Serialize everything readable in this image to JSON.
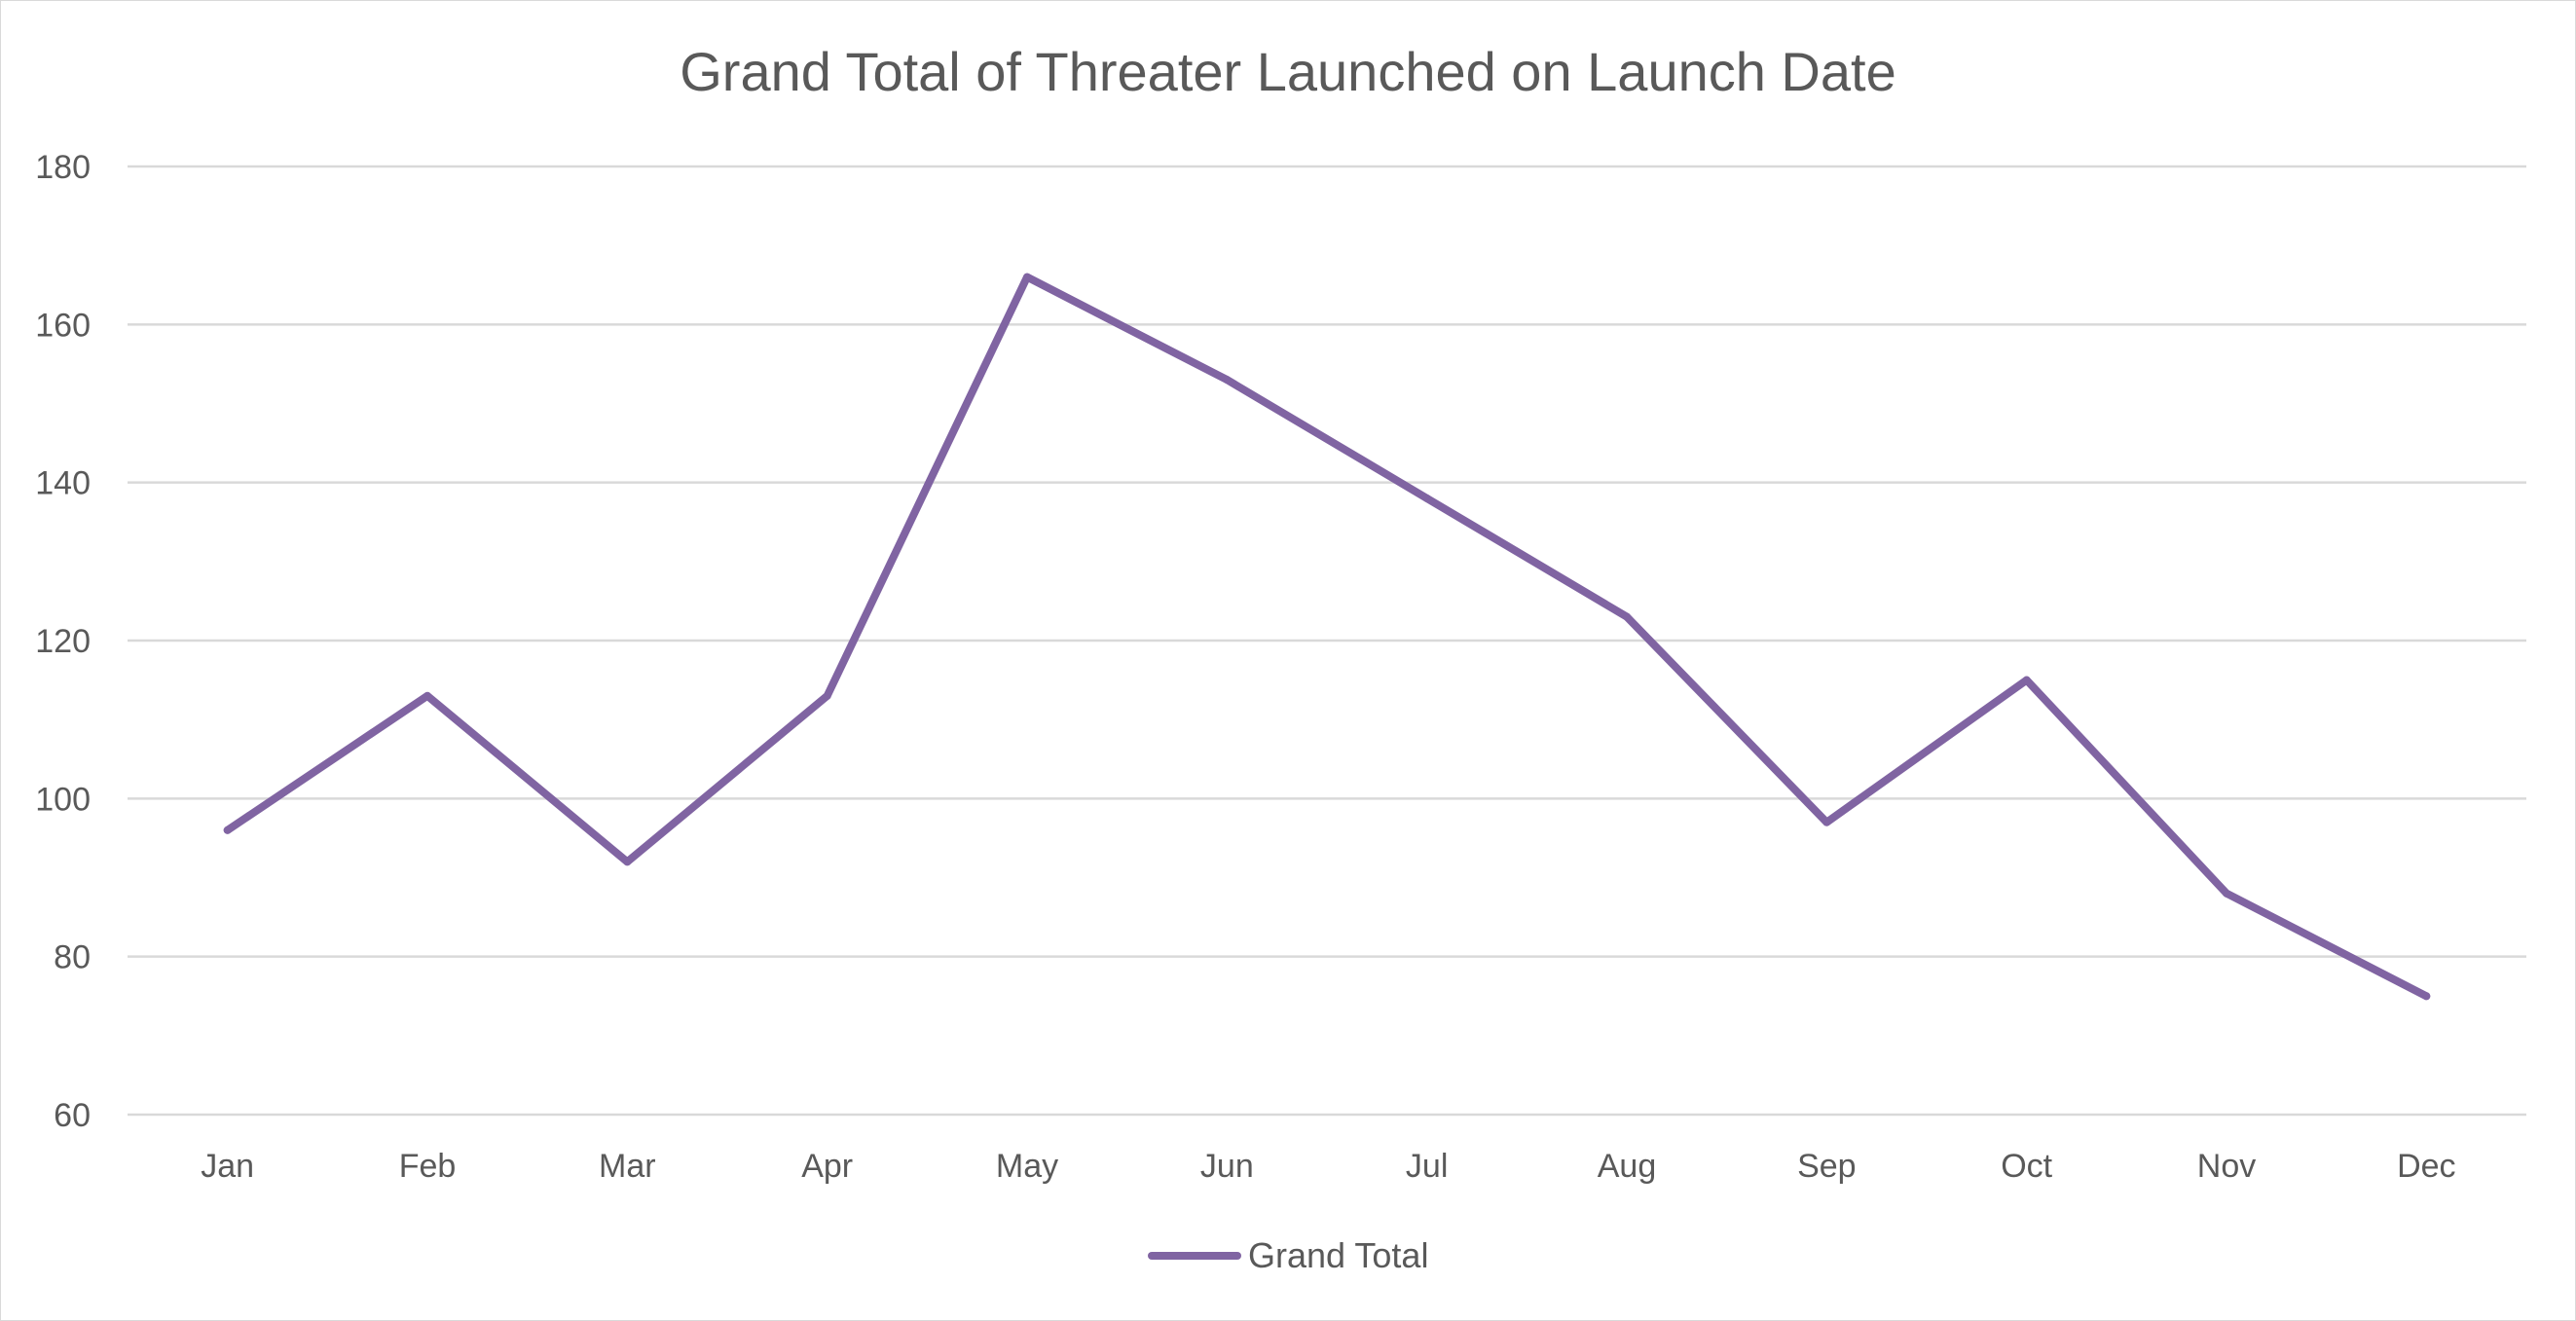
{
  "chart_data": {
    "type": "line",
    "title": "Grand Total of Threater Launched on Launch Date",
    "xlabel": "",
    "ylabel": "",
    "categories": [
      "Jan",
      "Feb",
      "Mar",
      "Apr",
      "May",
      "Jun",
      "Jul",
      "Aug",
      "Sep",
      "Oct",
      "Nov",
      "Dec"
    ],
    "series": [
      {
        "name": "Grand Total",
        "values": [
          96,
          113,
          92,
          113,
          166,
          153,
          138,
          123,
          97,
          115,
          88,
          75
        ],
        "color": "#8064a2"
      }
    ],
    "ylim": [
      60,
      180
    ],
    "yticks": [
      "60",
      "80",
      "100",
      "120",
      "140",
      "160",
      "180"
    ],
    "grid": true,
    "legend_position": "bottom"
  },
  "colors": {
    "gridline": "#d9d9d9",
    "text": "#595959",
    "border": "#d9d9d9"
  }
}
